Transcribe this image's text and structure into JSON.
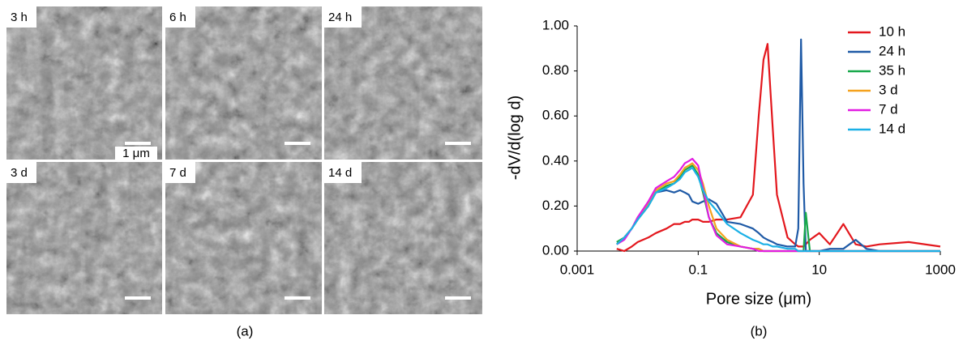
{
  "panel_a": {
    "images": [
      {
        "label": "3 h",
        "scale_bar": "1 μm"
      },
      {
        "label": "6 h"
      },
      {
        "label": "24 h"
      },
      {
        "label": "3 d"
      },
      {
        "label": "7 d"
      },
      {
        "label": "14 d"
      }
    ],
    "caption": "(a)"
  },
  "chart_data": {
    "type": "line",
    "caption": "(b)",
    "x_label": "Pore size (μm)",
    "y_label": "-dV/d(log d)",
    "x_scale": "log",
    "legend": "right",
    "xlim": [
      0.001,
      1000
    ],
    "xticks": [
      0.001,
      0.1,
      10,
      1000
    ],
    "ylim": [
      0,
      1
    ],
    "yticks": [
      {
        "value": 0,
        "label": "0.00"
      },
      {
        "value": 0.2,
        "label": "0.20"
      },
      {
        "value": 0.4,
        "label": "0.40"
      },
      {
        "value": 0.6,
        "label": "0.60"
      },
      {
        "value": 0.8,
        "label": "0.80"
      },
      {
        "value": 1,
        "label": "1.00"
      }
    ],
    "x": [
      0.0045,
      0.006,
      0.008,
      0.01,
      0.015,
      0.02,
      0.03,
      0.04,
      0.05,
      0.06,
      0.07,
      0.08,
      0.1,
      0.12,
      0.15,
      0.2,
      0.3,
      0.5,
      0.8,
      1,
      1.2,
      1.4,
      1.7,
      2,
      3,
      4,
      4.5,
      5,
      5.5,
      6,
      7,
      10,
      15,
      25,
      40,
      60,
      100,
      300,
      1000
    ],
    "series": [
      {
        "name": "10 h",
        "color": "#e3171d",
        "values": [
          0.01,
          0.0,
          0.02,
          0.04,
          0.06,
          0.08,
          0.1,
          0.12,
          0.12,
          0.13,
          0.13,
          0.14,
          0.14,
          0.13,
          0.13,
          0.14,
          0.14,
          0.15,
          0.25,
          0.6,
          0.85,
          0.92,
          0.55,
          0.25,
          0.06,
          0.03,
          0.02,
          0.02,
          0.02,
          0.03,
          0.05,
          0.08,
          0.03,
          0.12,
          0.03,
          0.02,
          0.03,
          0.04,
          0.02
        ]
      },
      {
        "name": "24 h",
        "color": "#1f5aa6",
        "values": [
          0.03,
          0.06,
          0.1,
          0.14,
          0.2,
          0.26,
          0.27,
          0.26,
          0.27,
          0.26,
          0.25,
          0.22,
          0.21,
          0.22,
          0.23,
          0.21,
          0.13,
          0.12,
          0.1,
          0.08,
          0.06,
          0.05,
          0.04,
          0.03,
          0.02,
          0.02,
          0.1,
          0.94,
          0.3,
          0.0,
          0.0,
          0.0,
          0.01,
          0.01,
          0.05,
          0.01,
          0.0,
          0.0,
          0.0
        ]
      },
      {
        "name": "35 h",
        "color": "#17a84a",
        "values": [
          0.04,
          0.06,
          0.1,
          0.14,
          0.2,
          0.26,
          0.29,
          0.3,
          0.33,
          0.36,
          0.37,
          0.38,
          0.34,
          0.26,
          0.15,
          0.08,
          0.04,
          0.02,
          0.01,
          0.01,
          0.0,
          0.0,
          0.0,
          0.0,
          0.0,
          0.0,
          0.0,
          0.0,
          0.0,
          0.17,
          0.0,
          0.0,
          0.0,
          0.0,
          0.0,
          0.0,
          0.0,
          0.0,
          0.0
        ]
      },
      {
        "name": "3 d",
        "color": "#f5a21e",
        "values": [
          0.03,
          0.06,
          0.1,
          0.15,
          0.21,
          0.27,
          0.3,
          0.31,
          0.34,
          0.37,
          0.38,
          0.39,
          0.36,
          0.3,
          0.2,
          0.1,
          0.05,
          0.02,
          0.01,
          0.01,
          0.0,
          0.0,
          0.0,
          0.0,
          0.0,
          0.0,
          0.0,
          0.0,
          0.0,
          0.0,
          0.0,
          0.0,
          0.0,
          0.0,
          0.0,
          0.0,
          0.0,
          0.0,
          0.0
        ]
      },
      {
        "name": "7 d",
        "color": "#e21de2",
        "values": [
          0.03,
          0.05,
          0.1,
          0.15,
          0.22,
          0.28,
          0.31,
          0.33,
          0.36,
          0.39,
          0.4,
          0.41,
          0.38,
          0.28,
          0.15,
          0.07,
          0.03,
          0.02,
          0.01,
          0.0,
          0.0,
          0.0,
          0.0,
          0.0,
          0.0,
          0.0,
          0.0,
          0.0,
          0.0,
          0.0,
          0.0,
          0.0,
          0.0,
          0.0,
          0.0,
          0.0,
          0.0,
          0.0,
          0.0
        ]
      },
      {
        "name": "14 d",
        "color": "#1bb0e6",
        "values": [
          0.03,
          0.06,
          0.1,
          0.14,
          0.2,
          0.26,
          0.28,
          0.3,
          0.32,
          0.35,
          0.36,
          0.37,
          0.33,
          0.27,
          0.22,
          0.18,
          0.12,
          0.08,
          0.05,
          0.04,
          0.03,
          0.03,
          0.02,
          0.02,
          0.01,
          0.01,
          0.0,
          0.0,
          0.0,
          0.0,
          0.0,
          0.0,
          0.0,
          0.0,
          0.0,
          0.0,
          0.0,
          0.0,
          0.0
        ]
      }
    ]
  }
}
